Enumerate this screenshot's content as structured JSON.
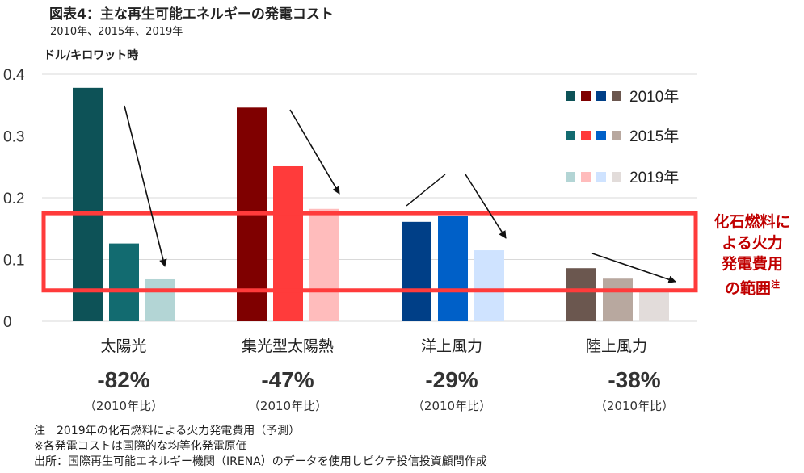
{
  "header": {
    "title": "図表4：主な再生可能エネルギーの発電コスト",
    "subtitle": "2010年、2015年、2019年",
    "unit": "ドル/キロワット時"
  },
  "chart_data": {
    "type": "bar",
    "title": "図表4：主な再生可能エネルギーの発電コスト",
    "subtitle": "2010年、2015年、2019年",
    "ylabel": "ドル/キロワット時",
    "xlabel": "",
    "ylim": [
      0,
      0.4
    ],
    "yticks": [
      "0",
      "0.1",
      "0.2",
      "0.3",
      "0.4"
    ],
    "ytick_values": [
      0,
      0.1,
      0.2,
      0.3,
      0.4
    ],
    "grid": true,
    "legend_position": "top-right",
    "categories": [
      "太陽光",
      "集光型太陽熱",
      "洋上風力",
      "陸上風力"
    ],
    "series": [
      {
        "name": "2010年",
        "values": [
          0.378,
          0.346,
          0.161,
          0.086
        ],
        "colors": [
          "#0d5257",
          "#7f0000",
          "#003f87",
          "#6b574f"
        ]
      },
      {
        "name": "2015年",
        "values": [
          0.126,
          0.251,
          0.17,
          0.069
        ],
        "colors": [
          "#126b70",
          "#ff3b3b",
          "#0060c8",
          "#b8a89f"
        ]
      },
      {
        "name": "2019年",
        "values": [
          0.068,
          0.182,
          0.115,
          0.053
        ],
        "colors": [
          "#b3d5d5",
          "#ffbcbc",
          "#cfe3ff",
          "#e2dcda"
        ]
      }
    ],
    "change_labels": [
      "-82%",
      "-47%",
      "-29%",
      "-38%"
    ],
    "change_reference": "（2010年比）",
    "fossil_range": {
      "low": 0.05,
      "high": 0.175,
      "label_lines": [
        "化石燃料に",
        "よる火力",
        "発電費用",
        "の範囲"
      ],
      "label_note": "注",
      "color": "#ff3b3b",
      "label_color": "#c00000"
    }
  },
  "notes": [
    "注　2019年の化石燃料による火力発電費用（予測）",
    "※各発電コストは国際的な均等化発電原価",
    "出所：国際再生可能エネルギー機関（IRENA）のデータを使用しピクテ投信投資顧問作成"
  ]
}
